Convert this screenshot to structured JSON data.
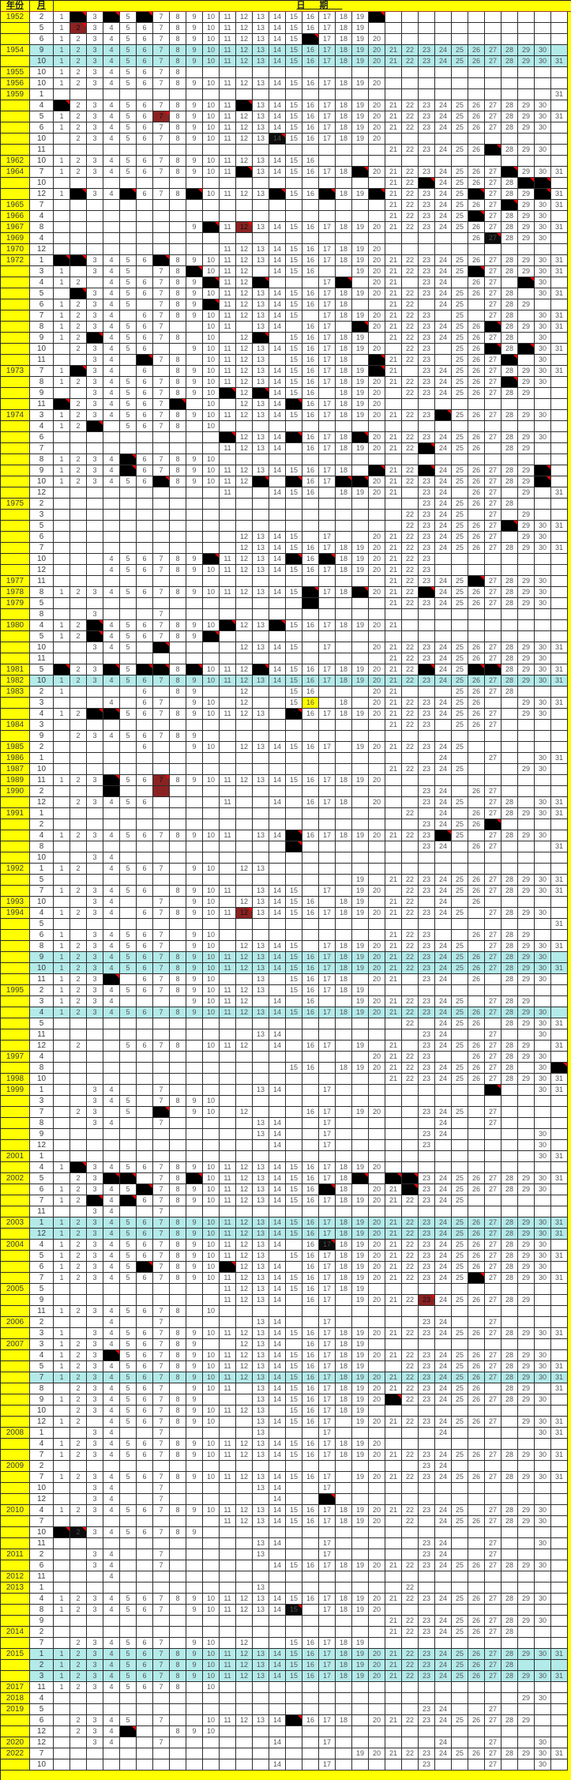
{
  "header": {
    "year_label": "年份",
    "month_label": "月",
    "date_label": "日期"
  },
  "colors": {
    "header_bg": "#ffff00",
    "highlight_row": "#b3eaea",
    "black_cell": "#000000",
    "dark_red_cell": "#8b2222",
    "corner_marker": "#ff0000"
  },
  "day_columns": 31,
  "rows": [
    {
      "y": "1952",
      "m": "2",
      "d": "1,3,5,7-19",
      "b": "2,4,6,20"
    },
    {
      "y": "",
      "m": "5",
      "d": "1,3-19",
      "r": "2"
    },
    {
      "y": "",
      "m": "6",
      "d": "1-15,17-20",
      "b": "16"
    },
    {
      "y": "1954",
      "m": "9",
      "hl": 1,
      "d": "1-30"
    },
    {
      "y": "",
      "m": "10",
      "hl": 1,
      "d": "1-31"
    },
    {
      "y": "1955",
      "m": "10",
      "d": "1-8"
    },
    {
      "y": "1956",
      "m": "10",
      "d": "1-20"
    },
    {
      "y": "1959",
      "m": "1",
      "d": "31"
    },
    {
      "y": "",
      "m": "4",
      "d": "2-11,13-30",
      "b": "1,12"
    },
    {
      "y": "",
      "m": "5",
      "d": "1-6,8-31",
      "r": "7"
    },
    {
      "y": "",
      "m": "6",
      "d": "1-30"
    },
    {
      "y": "",
      "m": "10",
      "d": "2-13,15-20",
      "bn": "14"
    },
    {
      "y": "",
      "m": "11",
      "d": "21-26,28-30",
      "b": "27"
    },
    {
      "y": "1962",
      "m": "10",
      "d": "1-16"
    },
    {
      "y": "1964",
      "m": "7",
      "d": "1-11,13-18,20-27,29-31",
      "b": "12,19,28"
    },
    {
      "y": "",
      "m": "10",
      "d": "21,22,24-28",
      "b": "23,29,30"
    },
    {
      "y": "",
      "m": "12",
      "d": "1,3,4,6-8,10-13,15,16,18,19,21-25,27-29,31",
      "b": "2,5,9,14,17,20,26,30"
    },
    {
      "y": "1965",
      "m": "7",
      "d": "21-27,29-31",
      "b": "28"
    },
    {
      "y": "1966",
      "m": "4",
      "d": "21-25,27-30",
      "b": "26"
    },
    {
      "y": "1967",
      "m": "8",
      "d": "9,11,13-31",
      "b": "10",
      "r": "12"
    },
    {
      "y": "1969",
      "m": "4",
      "d": "26,28-30",
      "bn": "27"
    },
    {
      "y": "1970",
      "m": "12",
      "d": "11-20"
    },
    {
      "y": "1972",
      "m": "1",
      "d": "3-6,8-31",
      "b": "1,2,7"
    },
    {
      "y": "",
      "m": "3",
      "d": "1,3-5,7,8,10-12,14-16,19-25,27-31",
      "b": "9,26"
    },
    {
      "y": "",
      "m": "4",
      "d": "1,2,4-9,11,12,17,20,21,23,24,26,27,30",
      "b": "10,13,18,29"
    },
    {
      "y": "",
      "m": "5",
      "d": "3-28,30,31",
      "b": "2"
    },
    {
      "y": "",
      "m": "6",
      "d": "1-5,7-9,11-18,21,22,24,25,27-29",
      "b": "10"
    },
    {
      "y": "",
      "m": "7",
      "d": "1-4,6-15,17-23,25,27,28,30,31"
    },
    {
      "y": "",
      "m": "8",
      "d": "1-7,10,11,13,14,16,17,20-26,28-31",
      "b": "19,27"
    },
    {
      "y": "",
      "m": "9",
      "d": "1,2,4-8,10,12,15-19,21-28,30",
      "b": "3,13"
    },
    {
      "y": "",
      "m": "10",
      "d": "2-6,9-20,22,23,25,26,28,30,31",
      "b": "27,29"
    },
    {
      "y": "",
      "m": "11",
      "d": "3,4,7,8,10-13,15-18,21-23,25-27,30",
      "b": "6,20,28"
    },
    {
      "y": "1973",
      "m": "7",
      "d": "1,3,4,6,8-19,21,23-31",
      "b": "2,20"
    },
    {
      "y": "",
      "m": "8",
      "d": "1-27,29,30",
      "b": "28"
    },
    {
      "y": "",
      "m": "9",
      "d": "3-10,12,14-16,18-20,22-29",
      "b": "11,13"
    },
    {
      "y": "",
      "m": "11",
      "d": "2-7,10,12-14,16-20",
      "b": "1,8,15"
    },
    {
      "y": "1974",
      "m": "3",
      "d": "1-23,25-30",
      "b": "24"
    },
    {
      "y": "",
      "m": "4",
      "d": "1,2,5-8,10",
      "b": "3"
    },
    {
      "y": "",
      "m": "6",
      "d": "12-14,16-18,20-30",
      "b": "11,15,19"
    },
    {
      "y": "",
      "m": "7",
      "d": "11-14,16-22,24-26,28,29",
      "b": "23"
    },
    {
      "y": "",
      "m": "8",
      "d": "1-4,6-10",
      "b": "5"
    },
    {
      "y": "",
      "m": "9",
      "d": "1-4,6-18,21,22,24-29",
      "b": "5,20,23,30"
    },
    {
      "y": "",
      "m": "10",
      "d": "1-6,8-12,16,17,20-29",
      "b": "7,13,15,18,19,30"
    },
    {
      "y": "",
      "m": "12",
      "d": "11,14-16,18-21,23,24,26,27,29,31"
    },
    {
      "y": "1975",
      "m": "2",
      "d": "23-28"
    },
    {
      "y": "",
      "m": "3",
      "d": "22-25,27,29"
    },
    {
      "y": "",
      "m": "5",
      "d": "22-27,29-31",
      "b": "28"
    },
    {
      "y": "",
      "m": "6",
      "d": "12-15,17,20-27,29,30"
    },
    {
      "y": "",
      "m": "7",
      "d": "12-31"
    },
    {
      "y": "",
      "m": "10",
      "d": "4-9,11-14,16,18-23",
      "b": "10,15,17"
    },
    {
      "y": "",
      "m": "12",
      "d": "4-23"
    },
    {
      "y": "1977",
      "m": "11",
      "d": "21-25,27-30",
      "b": "26"
    },
    {
      "y": "1978",
      "m": "8",
      "d": "1-15,17,18,20-22,24-30",
      "b": "16,19,23"
    },
    {
      "y": "1979",
      "m": "5",
      "d": "21-30",
      "b": "16",
      "nc": "16"
    },
    {
      "y": "",
      "m": "8",
      "d": "3,7"
    },
    {
      "y": "1980",
      "m": "4",
      "d": "1,2,4-10,12,13,15-21",
      "b": "3,11,14"
    },
    {
      "y": "",
      "m": "5",
      "d": "1,2,4-9",
      "b": "3,10"
    },
    {
      "y": "",
      "m": "10",
      "d": "3-5,12-15,17,20-31",
      "b": "7"
    },
    {
      "y": "",
      "m": "11",
      "d": "21-30"
    },
    {
      "y": "1981",
      "m": "5",
      "d": "2,3,5,8,10-12,14-22,24,25,28-31",
      "b": "1,4,6,7,9,13,23,26,27"
    },
    {
      "y": "1982",
      "m": "10",
      "hl": 1,
      "d": "1-31"
    },
    {
      "y": "1983",
      "m": "2",
      "d": "1,6,8,9,12,15,16,20,21,25-28"
    },
    {
      "y": "",
      "m": "3",
      "d": "4,6,7,9,10,12,15,18,20-26,29-31",
      "yl": "16"
    },
    {
      "y": "",
      "m": "4",
      "d": "1,2,5-13,16-27,29,30",
      "b": "3,4,15"
    },
    {
      "y": "1984",
      "m": "3",
      "d": "21-23,25-27"
    },
    {
      "y": "",
      "m": "9",
      "d": "2-9"
    },
    {
      "y": "1985",
      "m": "2",
      "d": "6,9,10,12-17,19-25"
    },
    {
      "y": "1986",
      "m": "1",
      "d": "24,27,30,31"
    },
    {
      "y": "1987",
      "m": "10",
      "d": "21-25,29,30"
    },
    {
      "y": "1989",
      "m": "11",
      "d": "1-3,5,6,8-20",
      "b": "4",
      "r": "7"
    },
    {
      "y": "1990",
      "m": "2",
      "d": "23,24,26,27",
      "b": "4",
      "ry": "7",
      "nc": "4,7"
    },
    {
      "y": "",
      "m": "12",
      "d": "2-6,11,14,16-18,20,23-25,27,28,30,31"
    },
    {
      "y": "1991",
      "m": "1",
      "d": "22,24,26-31"
    },
    {
      "y": "",
      "m": "2",
      "d": "23-26",
      "b": "27"
    },
    {
      "y": "",
      "m": "4",
      "d": "1-11,13,14,16-23,25,27-30",
      "b": "15,24"
    },
    {
      "y": "",
      "m": "8",
      "d": "23,24,26,27,31",
      "b": "15"
    },
    {
      "y": "",
      "m": "10",
      "d": "3,4"
    },
    {
      "y": "1992",
      "m": "1",
      "d": "1,2,4-7,9,10,12,13"
    },
    {
      "y": "",
      "m": "5",
      "d": "19,21-31"
    },
    {
      "y": "",
      "m": "7",
      "d": "1-6,8-11,13-15,17,19,20,22-31"
    },
    {
      "y": "1993",
      "m": "10",
      "d": "3,4,7,9,10,12-16,18,19,21,22,24,26"
    },
    {
      "y": "1994",
      "m": "4",
      "d": "1-4,6-11,13-25,27-30",
      "r": "12"
    },
    {
      "y": "",
      "m": "5",
      "d": "31"
    },
    {
      "y": "",
      "m": "6",
      "d": "1,3-7,9,10,21-23,26-29"
    },
    {
      "y": "",
      "m": "8",
      "d": "1-7,9,10,12-15,17-25,27-31"
    },
    {
      "y": "",
      "m": "9",
      "hl": 1,
      "d": "1-30"
    },
    {
      "y": "",
      "m": "10",
      "hl": 1,
      "d": "1-31"
    },
    {
      "y": "",
      "m": "11",
      "d": "1-3,6-10,13,15-18,20,21,23,24,26,28-30",
      "b": "4"
    },
    {
      "y": "1995",
      "m": "2",
      "d": "1-13,15-19"
    },
    {
      "y": "",
      "m": "3",
      "d": "1-4,9-12,14,16,19-25,27-29"
    },
    {
      "y": "",
      "m": "4",
      "hl": 1,
      "d": "1-30"
    },
    {
      "y": "",
      "m": "5",
      "d": "22,24-26,28-31"
    },
    {
      "y": "",
      "m": "11",
      "d": "13,14,23,24,27,30"
    },
    {
      "y": "",
      "m": "12",
      "d": "2,5-8,10-12,14,16,17,19,21,23-29,31"
    },
    {
      "y": "1997",
      "m": "4",
      "d": "20-23,26-30"
    },
    {
      "y": "",
      "m": "8",
      "d": "15,16,18-28,30",
      "b": "31"
    },
    {
      "y": "1998",
      "m": "10",
      "d": "21-31"
    },
    {
      "y": "1999",
      "m": "1",
      "d": "3,4,7,13,14,17,30,31",
      "b": "27"
    },
    {
      "y": "",
      "m": "3",
      "d": "3-5,7-10"
    },
    {
      "y": "",
      "m": "7",
      "d": "2,3,5,9,10,12,16,17,19,20,23-25,27",
      "b": "7"
    },
    {
      "y": "",
      "m": "8",
      "d": "3,4,7,13,14,17,24,27"
    },
    {
      "y": "",
      "m": "9",
      "d": "13,14,17,23,24,30"
    },
    {
      "y": "",
      "m": "12",
      "d": "14,17,23,30"
    },
    {
      "y": "2001",
      "m": "1",
      "d": "30,31"
    },
    {
      "y": "",
      "m": "4",
      "d": "1,3-20",
      "b": "2"
    },
    {
      "y": "2002",
      "m": "5",
      "d": "2,3,7,8,10-18,23-31",
      "b": "4,5,9,19,21,22"
    },
    {
      "y": "",
      "m": "6",
      "d": "1-5,7-16,18,20,21,23-30",
      "b": "6,17,22"
    },
    {
      "y": "",
      "m": "7",
      "d": "1,2,4,6-25",
      "b": "3,5"
    },
    {
      "y": "",
      "m": "11",
      "d": "3,4,7"
    },
    {
      "y": "2003",
      "m": "1",
      "hl": 1,
      "d": "1-31"
    },
    {
      "y": "",
      "m": "12",
      "hl": 1,
      "d": "1-31"
    },
    {
      "y": "2004",
      "m": "4",
      "d": "1-14,16,18-30",
      "bn": "17"
    },
    {
      "y": "",
      "m": "5",
      "d": "1-13,15-31"
    },
    {
      "y": "",
      "m": "6",
      "d": "1-5,7-10,12-14,16-30",
      "b": "6,11"
    },
    {
      "y": "",
      "m": "7",
      "d": "1-25,27-31",
      "b": "26"
    },
    {
      "y": "2005",
      "m": "5",
      "d": "11-19"
    },
    {
      "y": "",
      "m": "9",
      "d": "11-14,16,17,19-22,24-29",
      "r": "23"
    },
    {
      "y": "",
      "m": "11",
      "d": "1-8,10"
    },
    {
      "y": "2006",
      "m": "2",
      "d": "4,7,13,14,17,23,24,27"
    },
    {
      "y": "",
      "m": "3",
      "d": "1,3-31"
    },
    {
      "y": "2007",
      "m": "3",
      "d": "1-9,12-14,16-19"
    },
    {
      "y": "",
      "m": "4",
      "d": "1-3,5-30",
      "b": "4"
    },
    {
      "y": "",
      "m": "5",
      "d": "1-19,22-31"
    },
    {
      "y": "",
      "m": "7",
      "hl": 1,
      "d": "1-31"
    },
    {
      "y": "",
      "m": "8",
      "d": "2-7,9-11,13-26,28,29,31"
    },
    {
      "y": "",
      "m": "9",
      "d": "1-9,13-20,22-30",
      "b": "21"
    },
    {
      "y": "",
      "m": "10",
      "d": "2-13,15-19"
    },
    {
      "y": "",
      "m": "12",
      "d": "1,2,4-10,13-17,19-27,29-31"
    },
    {
      "y": "2008",
      "m": "1",
      "d": "3,4,7,13,17,24,30,31"
    },
    {
      "y": "",
      "m": "4",
      "d": "1-20"
    },
    {
      "y": "",
      "m": "7",
      "d": "1-31"
    },
    {
      "y": "2009",
      "m": "2",
      "d": "23,24"
    },
    {
      "y": "",
      "m": "7",
      "d": "1-17,19-31"
    },
    {
      "y": "",
      "m": "10",
      "d": "3,4,7,13,14,17"
    },
    {
      "y": "",
      "m": "12",
      "d": "3,4,7,14",
      "b": "17"
    },
    {
      "y": "2010",
      "m": "4",
      "d": "1-25,27-30"
    },
    {
      "y": "",
      "m": "7",
      "d": "11-20,22,24-30"
    },
    {
      "y": "",
      "m": "10",
      "d": "3-9",
      "b": "1",
      "bn": "2"
    },
    {
      "y": "",
      "m": "11",
      "d": "13,14,17,23,24,27,30"
    },
    {
      "y": "2011",
      "m": "2",
      "d": "3,4,7,13,17,23,24,27"
    },
    {
      "y": "",
      "m": "6",
      "d": "3,4,7,14-30"
    },
    {
      "y": "2012",
      "m": "11",
      "d": "4"
    },
    {
      "y": "2013",
      "m": "1",
      "d": "13,22"
    },
    {
      "y": "",
      "m": "4",
      "d": "1-30"
    },
    {
      "y": "",
      "m": "8",
      "d": "1-7,9-14,17-20",
      "bn": "15"
    },
    {
      "y": "",
      "m": "9",
      "d": "21-30"
    },
    {
      "y": "2014",
      "m": "2",
      "d": "21-28"
    },
    {
      "y": "",
      "m": "7",
      "d": "2-7,9,10,12,15-19"
    },
    {
      "y": "2015",
      "m": "1",
      "hl": 1,
      "d": "1-31"
    },
    {
      "y": "",
      "m": "2",
      "hl": 1,
      "d": "1-28"
    },
    {
      "y": "",
      "m": "3",
      "hl": 1,
      "d": "1-31"
    },
    {
      "y": "2017",
      "m": "11",
      "d": "1-8,10"
    },
    {
      "y": "2018",
      "m": "4",
      "d": "29,30"
    },
    {
      "y": "2019",
      "m": "5",
      "d": "23,24,27"
    },
    {
      "y": "",
      "m": "6",
      "d": "2-5,7,10-14,16-18,20-29",
      "b": "15"
    },
    {
      "y": "",
      "m": "12",
      "d": "2-4,8-10",
      "b": "5"
    },
    {
      "y": "2020",
      "m": "12",
      "d": "3,4,7,14,17,24,27,30"
    },
    {
      "y": "2022",
      "m": "7",
      "d": "19-31"
    },
    {
      "y": "",
      "m": "10",
      "d": "14,17,23,27,30"
    }
  ]
}
